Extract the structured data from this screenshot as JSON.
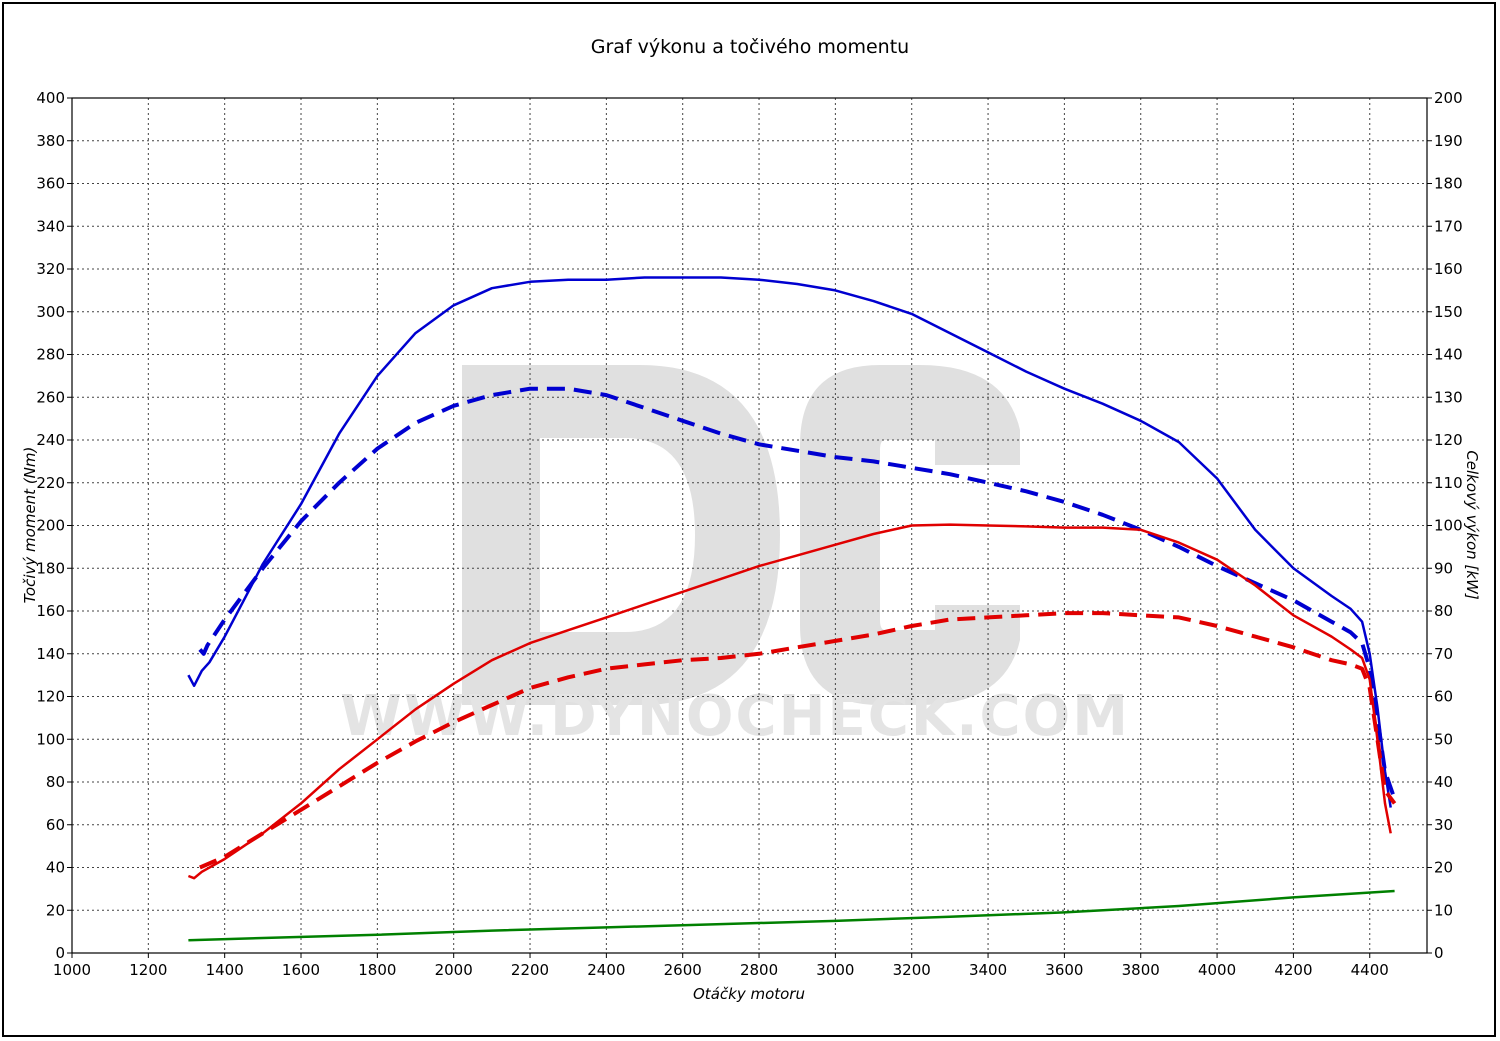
{
  "chart_data": {
    "type": "line",
    "title": "Graf výkonu a točivého momentu",
    "xlabel": "Otáčky motoru",
    "ylabel_left": "Točivý moment (Nm)",
    "ylabel_right": "Celkový výkon [kW]",
    "xlim": [
      1000,
      4550
    ],
    "ylim_left": [
      0,
      400
    ],
    "ylim_right": [
      0,
      200
    ],
    "x_ticks": [
      "1000",
      "1200",
      "1400",
      "1600",
      "1800",
      "2000",
      "2200",
      "2400",
      "2600",
      "2800",
      "3000",
      "3200",
      "3400",
      "3600",
      "3800",
      "4000",
      "4200",
      "4400"
    ],
    "y_ticks_left": [
      "0",
      "20",
      "40",
      "60",
      "80",
      "100",
      "120",
      "140",
      "160",
      "180",
      "200",
      "220",
      "240",
      "260",
      "280",
      "300",
      "320",
      "340",
      "360",
      "380",
      "400"
    ],
    "y_ticks_right": [
      "0",
      "10",
      "20",
      "30",
      "40",
      "50",
      "60",
      "70",
      "80",
      "90",
      "100",
      "110",
      "120",
      "130",
      "140",
      "150",
      "160",
      "170",
      "180",
      "190",
      "200"
    ],
    "grid": true,
    "watermark": {
      "letters": "DC",
      "text": "WWW.DYNOCHECK.COM"
    },
    "series": [
      {
        "axis": "left",
        "color": "#0000d0",
        "dash": false,
        "width": 2.5,
        "points": [
          [
            1305,
            130
          ],
          [
            1320,
            125
          ],
          [
            1340,
            132
          ],
          [
            1360,
            136
          ],
          [
            1400,
            148
          ],
          [
            1450,
            165
          ],
          [
            1500,
            182
          ],
          [
            1600,
            210
          ],
          [
            1700,
            243
          ],
          [
            1800,
            270
          ],
          [
            1900,
            290
          ],
          [
            2000,
            303
          ],
          [
            2100,
            311
          ],
          [
            2200,
            314
          ],
          [
            2300,
            315
          ],
          [
            2400,
            315
          ],
          [
            2500,
            316
          ],
          [
            2600,
            316
          ],
          [
            2700,
            316
          ],
          [
            2800,
            315
          ],
          [
            2900,
            313
          ],
          [
            3000,
            310
          ],
          [
            3100,
            305
          ],
          [
            3200,
            299
          ],
          [
            3300,
            290
          ],
          [
            3400,
            281
          ],
          [
            3500,
            272
          ],
          [
            3600,
            264
          ],
          [
            3700,
            257
          ],
          [
            3800,
            249
          ],
          [
            3900,
            239
          ],
          [
            4000,
            222
          ],
          [
            4100,
            198
          ],
          [
            4200,
            180
          ],
          [
            4300,
            167
          ],
          [
            4350,
            161
          ],
          [
            4380,
            155
          ],
          [
            4400,
            140
          ],
          [
            4420,
            115
          ],
          [
            4440,
            85
          ],
          [
            4455,
            68
          ]
        ]
      },
      {
        "axis": "left",
        "color": "#0000d0",
        "dash": true,
        "width": 4,
        "points": [
          [
            1335,
            142
          ],
          [
            1345,
            140
          ],
          [
            1355,
            144
          ],
          [
            1400,
            156
          ],
          [
            1450,
            168
          ],
          [
            1500,
            180
          ],
          [
            1600,
            202
          ],
          [
            1700,
            220
          ],
          [
            1800,
            236
          ],
          [
            1900,
            248
          ],
          [
            2000,
            256
          ],
          [
            2100,
            261
          ],
          [
            2200,
            264
          ],
          [
            2300,
            264
          ],
          [
            2400,
            261
          ],
          [
            2500,
            255
          ],
          [
            2600,
            249
          ],
          [
            2700,
            243
          ],
          [
            2800,
            238
          ],
          [
            2900,
            235
          ],
          [
            3000,
            232
          ],
          [
            3100,
            230
          ],
          [
            3200,
            227
          ],
          [
            3300,
            224
          ],
          [
            3400,
            220
          ],
          [
            3500,
            216
          ],
          [
            3600,
            211
          ],
          [
            3700,
            205
          ],
          [
            3800,
            198
          ],
          [
            3900,
            190
          ],
          [
            4000,
            181
          ],
          [
            4100,
            173
          ],
          [
            4200,
            165
          ],
          [
            4300,
            155
          ],
          [
            4350,
            150
          ],
          [
            4380,
            145
          ],
          [
            4400,
            133
          ],
          [
            4420,
            110
          ],
          [
            4440,
            85
          ],
          [
            4465,
            72
          ]
        ]
      },
      {
        "axis": "right",
        "color": "#e00000",
        "dash": false,
        "width": 2.5,
        "points": [
          [
            1305,
            18
          ],
          [
            1320,
            17.5
          ],
          [
            1340,
            19
          ],
          [
            1400,
            22
          ],
          [
            1500,
            28
          ],
          [
            1600,
            35
          ],
          [
            1700,
            43
          ],
          [
            1800,
            50
          ],
          [
            1900,
            57
          ],
          [
            2000,
            63
          ],
          [
            2100,
            68.5
          ],
          [
            2200,
            72.5
          ],
          [
            2300,
            75.5
          ],
          [
            2400,
            78.5
          ],
          [
            2500,
            81.5
          ],
          [
            2600,
            84.5
          ],
          [
            2700,
            87.5
          ],
          [
            2800,
            90.5
          ],
          [
            2900,
            93
          ],
          [
            3000,
            95.5
          ],
          [
            3100,
            98
          ],
          [
            3200,
            100
          ],
          [
            3300,
            100.2
          ],
          [
            3400,
            100
          ],
          [
            3500,
            99.8
          ],
          [
            3600,
            99.5
          ],
          [
            3700,
            99.5
          ],
          [
            3800,
            99
          ],
          [
            3900,
            96
          ],
          [
            4000,
            92
          ],
          [
            4100,
            86
          ],
          [
            4200,
            79
          ],
          [
            4300,
            74
          ],
          [
            4350,
            71
          ],
          [
            4380,
            69
          ],
          [
            4400,
            64
          ],
          [
            4420,
            50
          ],
          [
            4440,
            35
          ],
          [
            4455,
            28
          ]
        ]
      },
      {
        "axis": "right",
        "color": "#e00000",
        "dash": true,
        "width": 4,
        "points": [
          [
            1335,
            20
          ],
          [
            1400,
            22.5
          ],
          [
            1500,
            28
          ],
          [
            1600,
            33.5
          ],
          [
            1700,
            39
          ],
          [
            1800,
            44.5
          ],
          [
            1900,
            49.5
          ],
          [
            2000,
            54
          ],
          [
            2100,
            58
          ],
          [
            2200,
            62
          ],
          [
            2300,
            64.5
          ],
          [
            2400,
            66.5
          ],
          [
            2500,
            67.5
          ],
          [
            2600,
            68.5
          ],
          [
            2700,
            69
          ],
          [
            2800,
            70
          ],
          [
            2900,
            71.5
          ],
          [
            3000,
            73
          ],
          [
            3100,
            74.5
          ],
          [
            3200,
            76.5
          ],
          [
            3300,
            78
          ],
          [
            3400,
            78.5
          ],
          [
            3500,
            79
          ],
          [
            3600,
            79.5
          ],
          [
            3700,
            79.5
          ],
          [
            3800,
            79
          ],
          [
            3900,
            78.5
          ],
          [
            4000,
            76.5
          ],
          [
            4100,
            74
          ],
          [
            4200,
            71.5
          ],
          [
            4300,
            68.5
          ],
          [
            4350,
            67.5
          ],
          [
            4380,
            66.5
          ],
          [
            4400,
            62
          ],
          [
            4420,
            50
          ],
          [
            4440,
            38
          ],
          [
            4465,
            35
          ]
        ]
      },
      {
        "axis": "left",
        "color": "#008000",
        "dash": false,
        "width": 2.5,
        "points": [
          [
            1305,
            6
          ],
          [
            1500,
            7
          ],
          [
            1800,
            8.5
          ],
          [
            2100,
            10.5
          ],
          [
            2400,
            12
          ],
          [
            2700,
            13.5
          ],
          [
            3000,
            15
          ],
          [
            3300,
            17
          ],
          [
            3600,
            19
          ],
          [
            3900,
            22
          ],
          [
            4200,
            26
          ],
          [
            4465,
            29
          ]
        ]
      }
    ]
  }
}
